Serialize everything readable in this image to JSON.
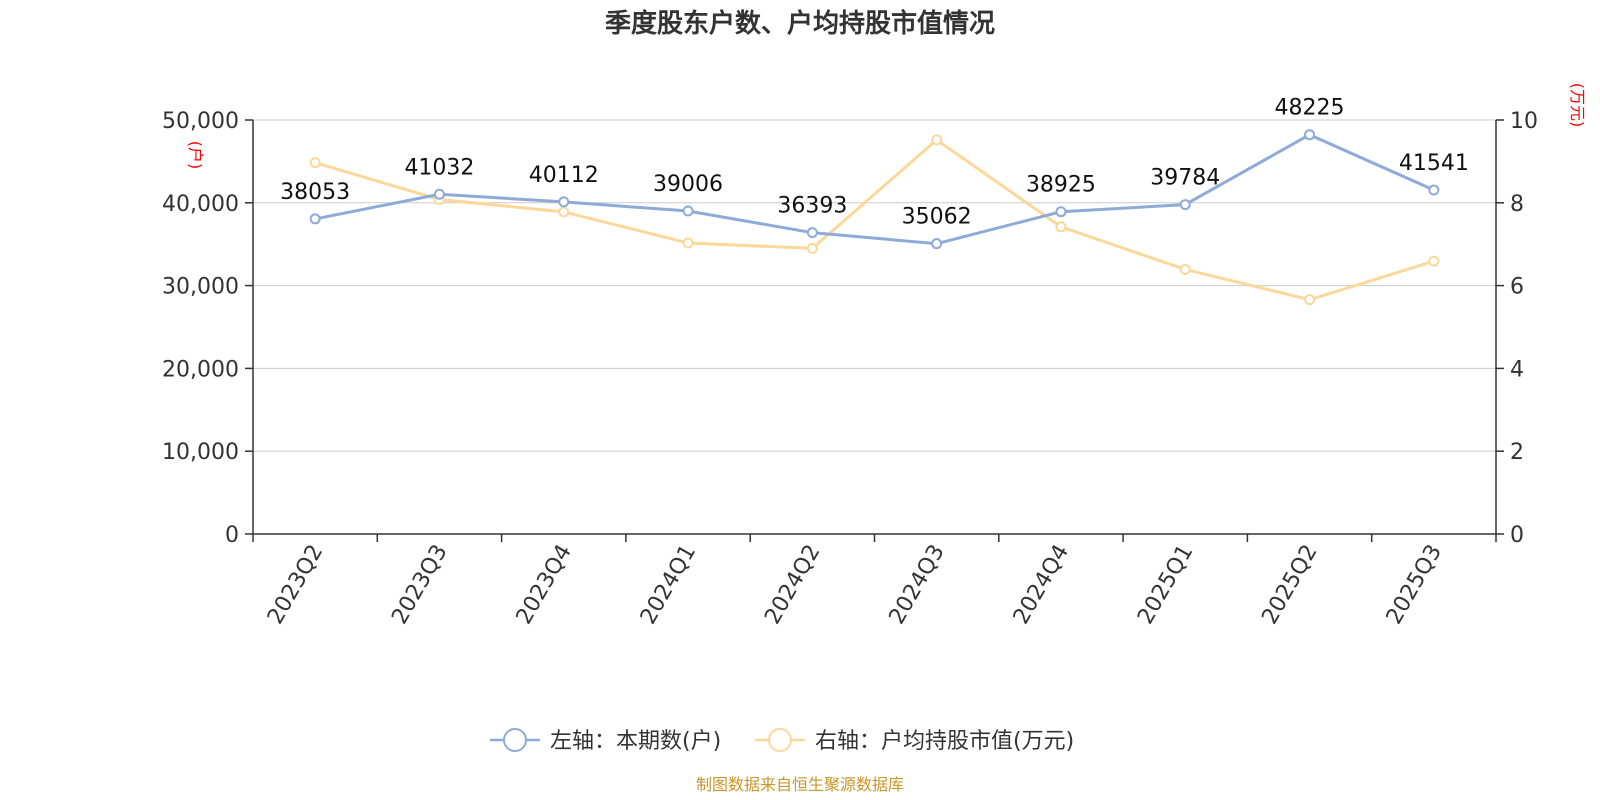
{
  "chart_data": {
    "type": "line",
    "title": "季度股东户数、户均持股市值情况",
    "categories": [
      "2023Q2",
      "2023Q3",
      "2023Q4",
      "2024Q1",
      "2024Q2",
      "2024Q3",
      "2024Q4",
      "2025Q1",
      "2025Q2",
      "2025Q3"
    ],
    "left_axis": {
      "unit": "(户)",
      "ylim": [
        0,
        50000
      ],
      "ticks": [
        "0",
        "10,000",
        "20,000",
        "30,000",
        "40,000",
        "50,000"
      ]
    },
    "right_axis": {
      "unit": "(万元)",
      "ylim": [
        0,
        10
      ],
      "ticks": [
        "0",
        "2",
        "4",
        "6",
        "8",
        "10"
      ]
    },
    "series": [
      {
        "name": "左轴：本期数(户)",
        "axis": "left",
        "color": "#8eaad8",
        "values": [
          38053,
          41032,
          40112,
          39006,
          36393,
          35062,
          38925,
          39784,
          48225,
          41541
        ],
        "labels": [
          "38053",
          "41032",
          "40112",
          "39006",
          "36393",
          "35062",
          "38925",
          "39784",
          "48225",
          "41541"
        ]
      },
      {
        "name": "右轴：户均持股市值(万元)",
        "axis": "right",
        "color": "#fbd89a",
        "values": [
          8.97,
          8.08,
          7.78,
          7.03,
          6.9,
          9.52,
          7.42,
          6.39,
          5.66,
          6.59
        ]
      }
    ],
    "grid": true,
    "legend": "bottom-center",
    "source": "制图数据来自恒生聚源数据库"
  }
}
